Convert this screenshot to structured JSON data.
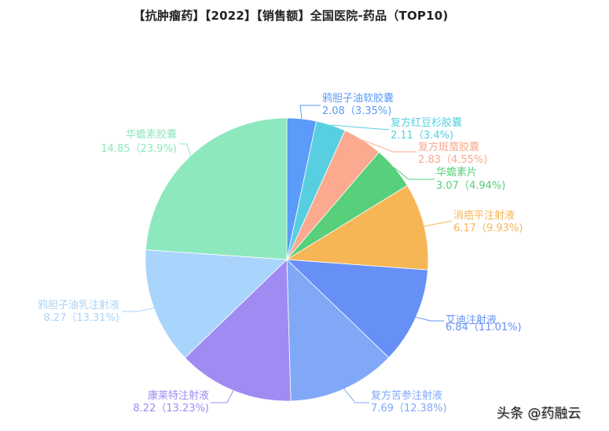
{
  "page": {
    "title": "【抗肿瘤药】【2022】【销售额】全国医院-药品（TOP10)",
    "watermark": "头条 @药融云"
  },
  "chart_data": {
    "type": "pie",
    "title": "【抗肿瘤药】【2022】【销售额】全国医院-药品（TOP10)",
    "start_angle": "12 o'clock, clockwise",
    "slices": [
      {
        "name": "鸦胆子油软胶囊",
        "value": 2.08,
        "percent": 3.35,
        "label": "2.08（3.35%)",
        "color": "#5b9bfa"
      },
      {
        "name": "复方红豆杉胶囊",
        "value": 2.11,
        "percent": 3.4,
        "label": "2.11（3.4%)",
        "color": "#58cfe0"
      },
      {
        "name": "复方斑蝥胶囊",
        "value": 2.83,
        "percent": 4.55,
        "label": "2.83（4.55%)",
        "color": "#fba98f"
      },
      {
        "name": "华蟾素片",
        "value": 3.07,
        "percent": 4.94,
        "label": "3.07（4.94%)",
        "color": "#57cf7b"
      },
      {
        "name": "消癌平注射液",
        "value": 6.17,
        "percent": 9.93,
        "label": "6.17（9.93%)",
        "color": "#f6b655"
      },
      {
        "name": "艾迪注射液",
        "value": 6.84,
        "percent": 11.01,
        "label": "6.84（11.01%)",
        "color": "#6690f5"
      },
      {
        "name": "复方苦参注射液",
        "value": 7.69,
        "percent": 12.38,
        "label": "7.69（12.38%)",
        "color": "#81a8f7"
      },
      {
        "name": "康莱特注射液",
        "value": 8.22,
        "percent": 13.23,
        "label": "8.22（13.23%)",
        "color": "#a08bf3"
      },
      {
        "name": "鸦胆子油乳注射液",
        "value": 8.27,
        "percent": 13.31,
        "label": "8.27（13.31%)",
        "color": "#a9d5fc"
      },
      {
        "name": "华蟾素胶囊",
        "value": 14.85,
        "percent": 23.9,
        "label": "14.85（23.9%)",
        "color": "#8ee8bd"
      }
    ],
    "legend": null
  }
}
